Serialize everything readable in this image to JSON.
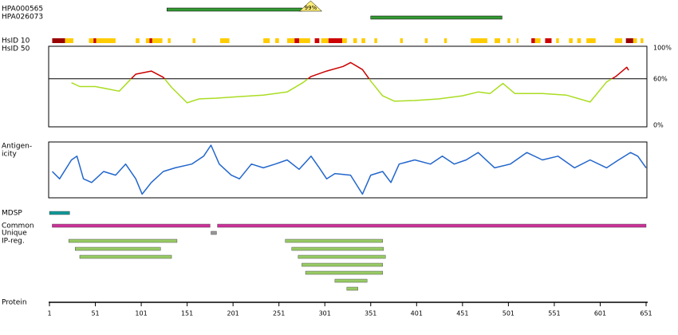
{
  "chart_data": [
    {
      "type": "range",
      "series": [
        {
          "name": "HPA000565",
          "start": 129,
          "end": 276,
          "color": "#339933",
          "annotation": "99%",
          "annotation_color": "#ffee77"
        },
        {
          "name": "HPA026073",
          "start": 351,
          "end": 494,
          "color": "#339933"
        }
      ]
    },
    {
      "type": "strip",
      "series": [
        {
          "name": "HsID 10",
          "segments": [
            {
              "start": 4,
              "end": 18,
              "color": "#990000"
            },
            {
              "start": 18,
              "end": 27,
              "color": "#ffcc00"
            },
            {
              "start": 44,
              "end": 49,
              "color": "#ffcc00"
            },
            {
              "start": 49,
              "end": 52,
              "color": "#cc0000"
            },
            {
              "start": 52,
              "end": 73,
              "color": "#ffcc00"
            },
            {
              "start": 95,
              "end": 99,
              "color": "#ffcc00"
            },
            {
              "start": 106,
              "end": 110,
              "color": "#ffcc00"
            },
            {
              "start": 110,
              "end": 113,
              "color": "#cc0000"
            },
            {
              "start": 113,
              "end": 124,
              "color": "#ffcc00"
            },
            {
              "start": 130,
              "end": 133,
              "color": "#ffcc00"
            },
            {
              "start": 157,
              "end": 160,
              "color": "#ffcc00"
            },
            {
              "start": 187,
              "end": 197,
              "color": "#ffcc00"
            },
            {
              "start": 234,
              "end": 241,
              "color": "#ffcc00"
            },
            {
              "start": 247,
              "end": 251,
              "color": "#ffcc00"
            },
            {
              "start": 260,
              "end": 268,
              "color": "#ffcc00"
            },
            {
              "start": 268,
              "end": 273,
              "color": "#cc0000"
            },
            {
              "start": 273,
              "end": 285,
              "color": "#ffcc00"
            },
            {
              "start": 290,
              "end": 295,
              "color": "#cc0000"
            },
            {
              "start": 297,
              "end": 305,
              "color": "#ffcc00"
            },
            {
              "start": 305,
              "end": 320,
              "color": "#cc0000"
            },
            {
              "start": 320,
              "end": 325,
              "color": "#ffcc00"
            },
            {
              "start": 332,
              "end": 336,
              "color": "#ffcc00"
            },
            {
              "start": 341,
              "end": 345,
              "color": "#ffcc00"
            },
            {
              "start": 355,
              "end": 358,
              "color": "#ffcc00"
            },
            {
              "start": 383,
              "end": 386,
              "color": "#ffcc00"
            },
            {
              "start": 410,
              "end": 413,
              "color": "#ffcc00"
            },
            {
              "start": 431,
              "end": 434,
              "color": "#ffcc00"
            },
            {
              "start": 460,
              "end": 478,
              "color": "#ffcc00"
            },
            {
              "start": 486,
              "end": 492,
              "color": "#ffcc00"
            },
            {
              "start": 500,
              "end": 503,
              "color": "#ffcc00"
            },
            {
              "start": 510,
              "end": 512,
              "color": "#ffcc00"
            },
            {
              "start": 526,
              "end": 530,
              "color": "#cc0000"
            },
            {
              "start": 530,
              "end": 536,
              "color": "#ffcc00"
            },
            {
              "start": 541,
              "end": 548,
              "color": "#cc0000"
            },
            {
              "start": 553,
              "end": 556,
              "color": "#ffcc00"
            },
            {
              "start": 567,
              "end": 571,
              "color": "#ffcc00"
            },
            {
              "start": 576,
              "end": 580,
              "color": "#ffcc00"
            },
            {
              "start": 586,
              "end": 596,
              "color": "#ffcc00"
            },
            {
              "start": 617,
              "end": 625,
              "color": "#ffcc00"
            },
            {
              "start": 629,
              "end": 637,
              "color": "#990000"
            },
            {
              "start": 637,
              "end": 641,
              "color": "#ffcc00"
            },
            {
              "start": 645,
              "end": 648,
              "color": "#ffcc00"
            }
          ]
        },
        {
          "name": "HsID 50",
          "segments": []
        }
      ]
    },
    {
      "type": "line",
      "x": [
        25,
        34,
        51,
        77,
        90,
        95,
        112,
        125,
        134,
        151,
        164,
        182,
        208,
        234,
        260,
        277,
        286,
        303,
        321,
        329,
        342,
        351,
        364,
        377,
        399,
        425,
        451,
        468,
        481,
        495,
        508,
        538,
        564,
        590,
        608,
        618,
        630,
        632
      ],
      "values": [
        55,
        50,
        50,
        44,
        60,
        66,
        70,
        62,
        49,
        29,
        34,
        35,
        37,
        39,
        43,
        55,
        63,
        70,
        76,
        81,
        72,
        57,
        38,
        31,
        32,
        34,
        38,
        43,
        41,
        54,
        41,
        41,
        39,
        30,
        56,
        63,
        75,
        71
      ],
      "ylim": [
        0,
        100
      ],
      "yticks": [
        {
          "value": 0,
          "label": "0%"
        },
        {
          "value": 60,
          "label": "60%"
        },
        {
          "value": 100,
          "label": "100%"
        }
      ],
      "reference_line": 60,
      "color_above": "#cc0000",
      "color_below": "#aadd22"
    },
    {
      "type": "line",
      "label": [
        "Antigen-",
        "icity"
      ],
      "x": [
        4,
        12,
        25,
        31,
        38,
        47,
        60,
        73,
        84,
        95,
        102,
        112,
        125,
        138,
        156,
        169,
        177,
        186,
        199,
        208,
        221,
        234,
        247,
        260,
        273,
        286,
        295,
        303,
        312,
        329,
        342,
        351,
        364,
        373,
        382,
        399,
        416,
        429,
        442,
        455,
        468,
        486,
        503,
        521,
        538,
        555,
        573,
        590,
        608,
        621,
        634,
        642,
        651
      ],
      "values": [
        47,
        33,
        69,
        76,
        33,
        26,
        47,
        40,
        61,
        33,
        4,
        26,
        47,
        54,
        61,
        76,
        97,
        61,
        40,
        33,
        61,
        54,
        61,
        69,
        51,
        76,
        54,
        33,
        43,
        40,
        4,
        40,
        47,
        26,
        61,
        69,
        61,
        76,
        61,
        69,
        83,
        54,
        61,
        83,
        69,
        76,
        54,
        69,
        54,
        69,
        83,
        76,
        54
      ],
      "ylim": [
        0,
        100
      ],
      "color": "#2266cc"
    },
    {
      "type": "range_rows",
      "series": [
        {
          "name": "MDSP",
          "color": "#119999",
          "ranges": [
            {
              "start": 1,
              "end": 23
            }
          ]
        },
        {
          "name": "Common",
          "color": "#cc3399",
          "ranges": [
            {
              "start": 4,
              "end": 176
            },
            {
              "start": 184,
              "end": 651
            }
          ]
        },
        {
          "name": "Unique",
          "color": "#999999",
          "ranges": [
            {
              "start": 177,
              "end": 183
            }
          ]
        },
        {
          "name": "IP-reg.",
          "color": "#99cc66",
          "ranges": [
            {
              "start": 22,
              "end": 140
            },
            {
              "start": 29,
              "end": 122
            },
            {
              "start": 34,
              "end": 134
            },
            {
              "start": 258,
              "end": 364
            },
            {
              "start": 265,
              "end": 365
            },
            {
              "start": 272,
              "end": 367
            },
            {
              "start": 276,
              "end": 364
            },
            {
              "start": 280,
              "end": 364
            },
            {
              "start": 312,
              "end": 347
            },
            {
              "start": 325,
              "end": 337
            }
          ]
        }
      ]
    },
    {
      "type": "axis",
      "label": "Protein",
      "xlim": [
        1,
        651
      ],
      "xticks": [
        1,
        51,
        101,
        151,
        201,
        251,
        301,
        351,
        401,
        451,
        501,
        551,
        601,
        651
      ]
    }
  ]
}
